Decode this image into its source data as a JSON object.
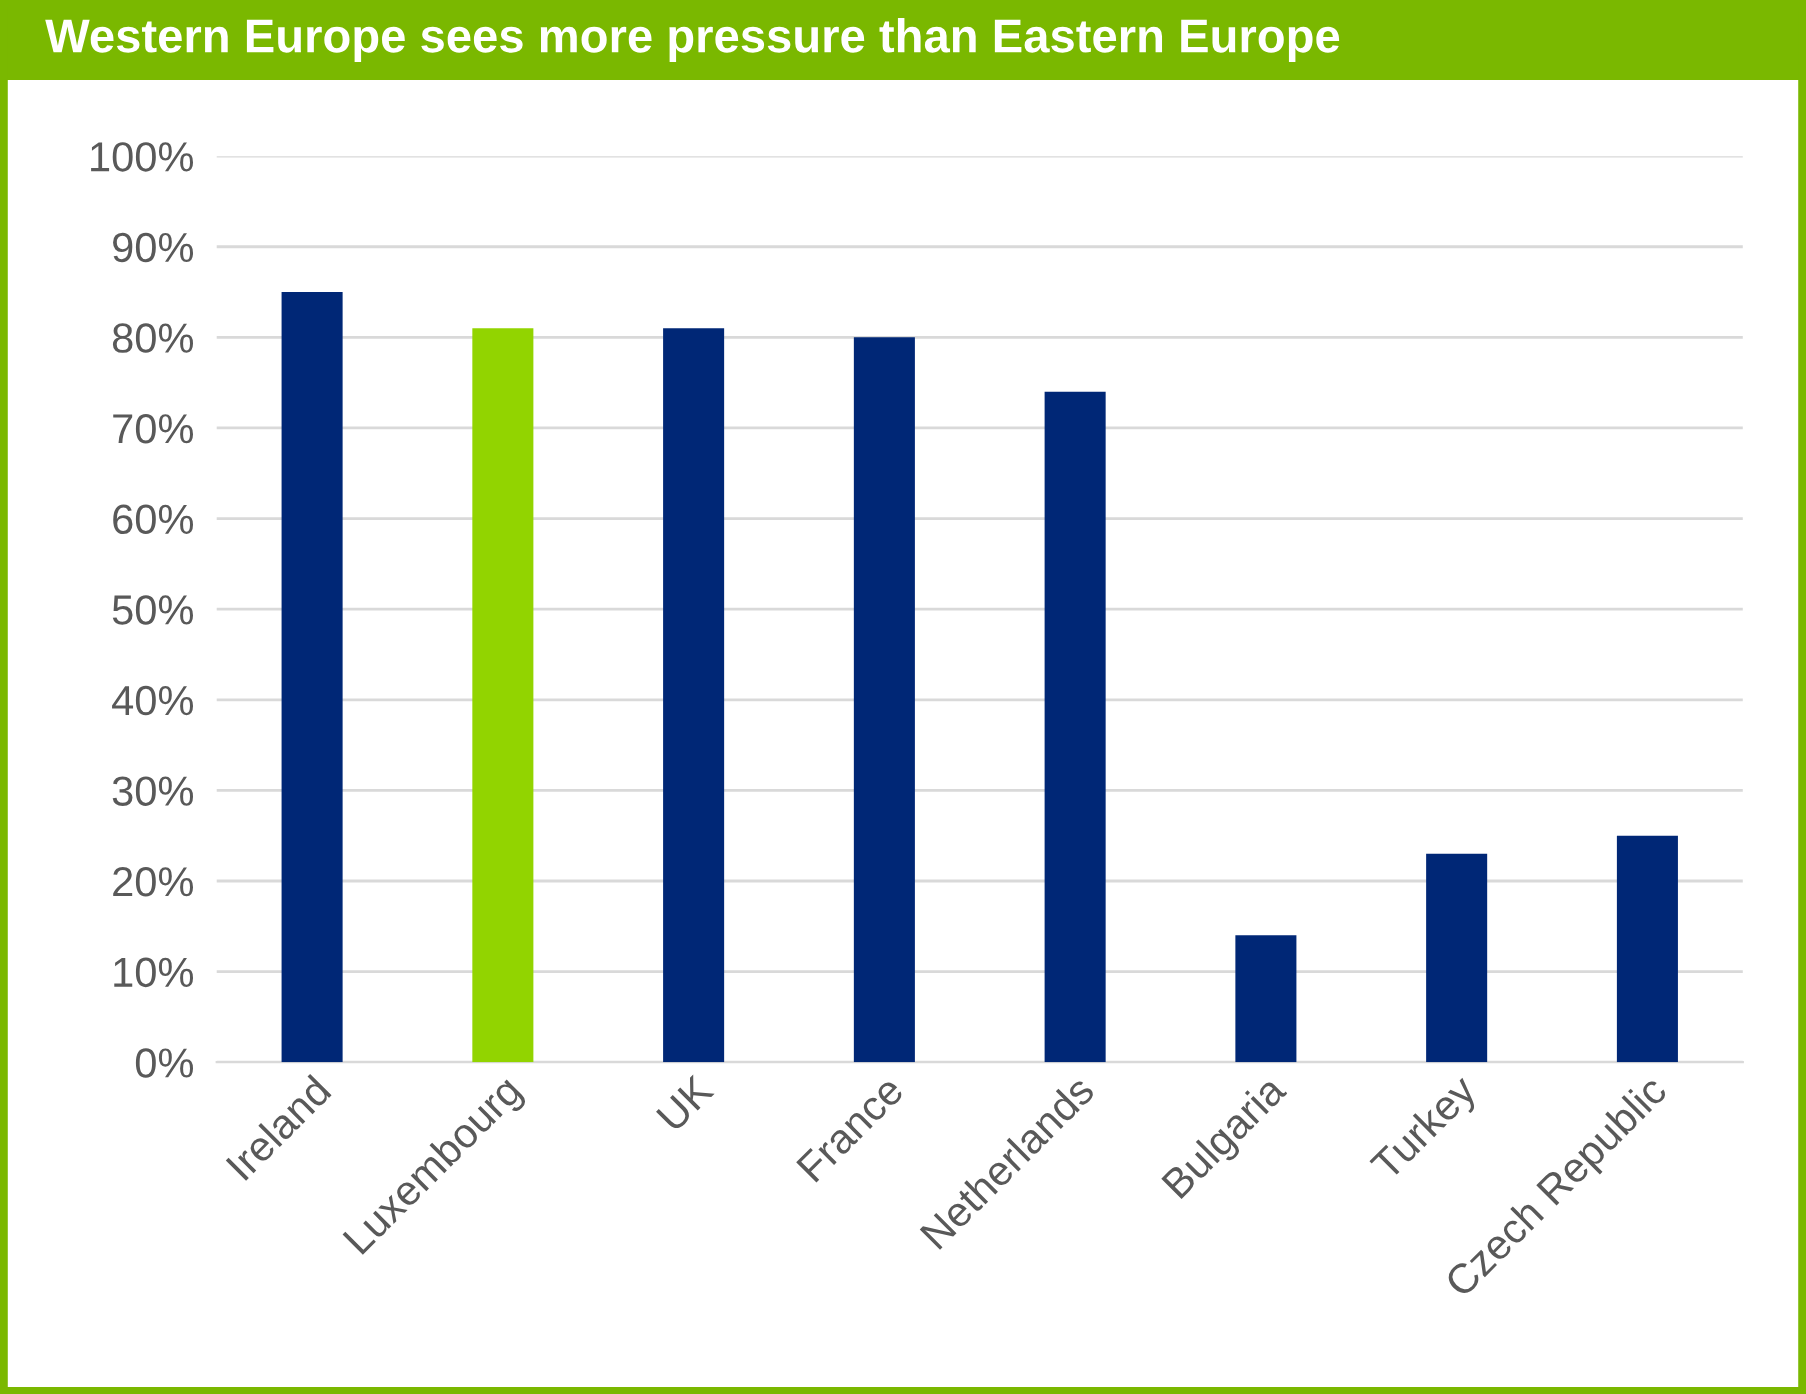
{
  "chart_data": {
    "type": "bar",
    "title": "Western Europe sees more pressure than Eastern Europe",
    "categories": [
      "Ireland",
      "Luxembourg",
      "UK",
      "France",
      "Netherlands",
      "Bulgaria",
      "Turkey",
      "Czech Republic"
    ],
    "values": [
      85,
      81,
      81,
      80,
      74,
      14,
      23,
      25
    ],
    "colors": [
      "#002776",
      "#92d400",
      "#002776",
      "#002776",
      "#002776",
      "#002776",
      "#002776",
      "#002776"
    ],
    "ylim": [
      0,
      100
    ],
    "yticks": [
      {
        "value": 0,
        "label": "0%"
      },
      {
        "value": 10,
        "label": "10%"
      },
      {
        "value": 20,
        "label": "20%"
      },
      {
        "value": 30,
        "label": "30%"
      },
      {
        "value": 40,
        "label": "40%"
      },
      {
        "value": 50,
        "label": "50%"
      },
      {
        "value": 60,
        "label": "60%"
      },
      {
        "value": 70,
        "label": "70%"
      },
      {
        "value": 80,
        "label": "80%"
      },
      {
        "value": 90,
        "label": "90%"
      },
      {
        "value": 100,
        "label": "100%"
      }
    ],
    "grid": "y",
    "legend": false
  }
}
